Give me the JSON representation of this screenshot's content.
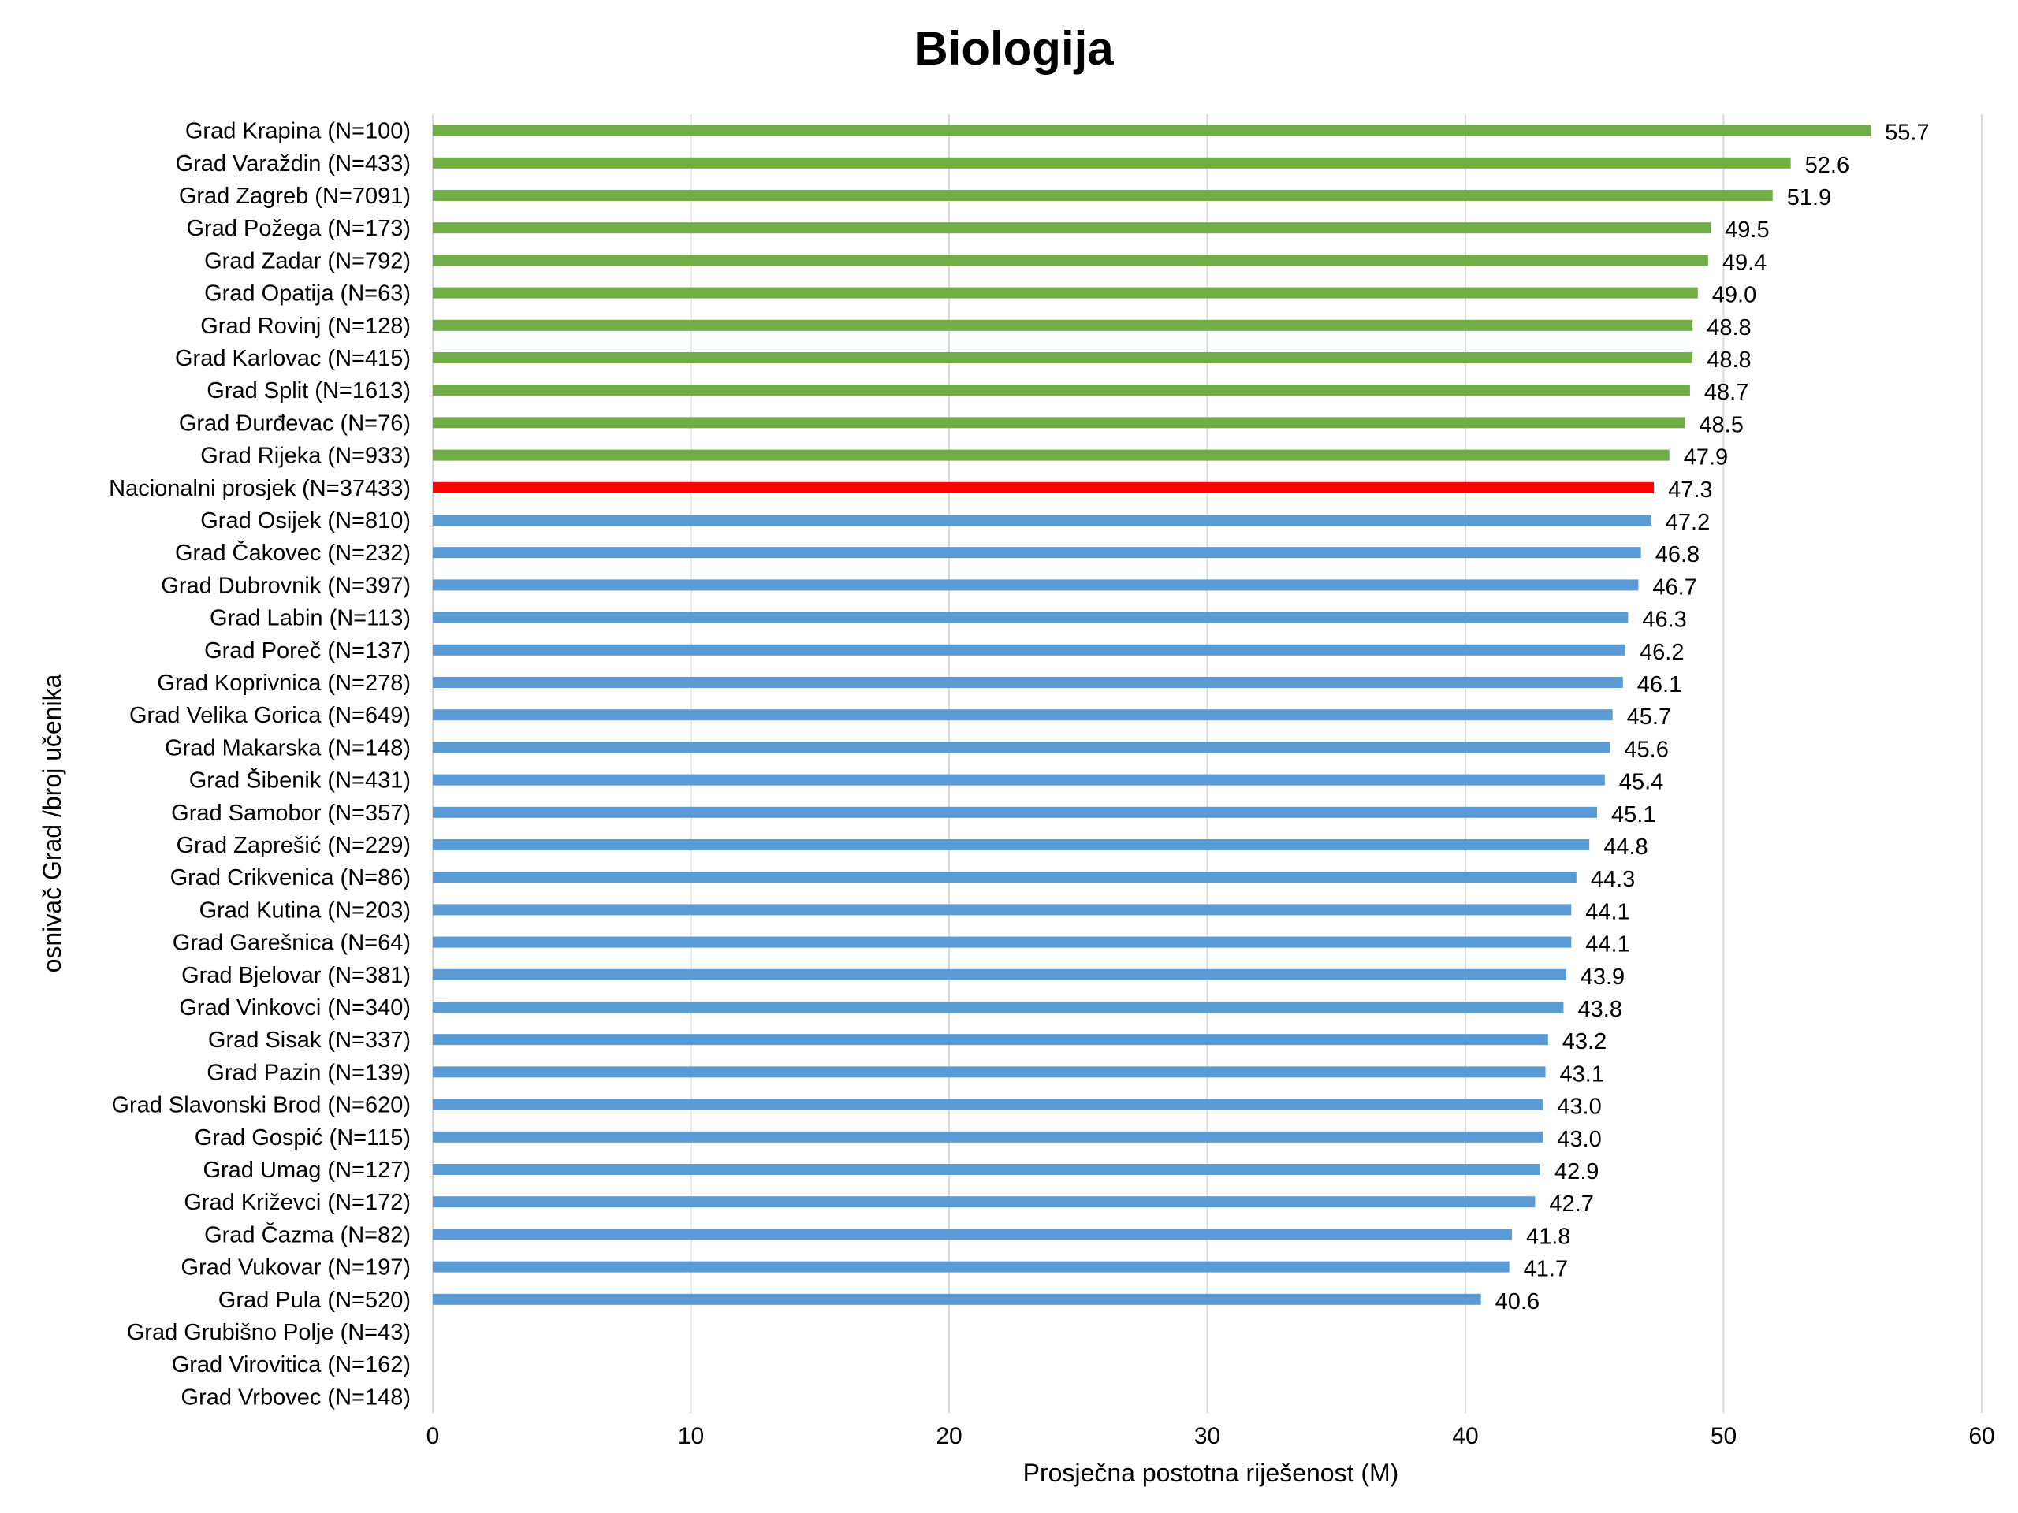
{
  "chart_data": {
    "type": "bar",
    "orientation": "horizontal",
    "title": "Biologija",
    "xlabel": "Prosječna postotna riješenost (M)",
    "ylabel": "osnivač Grad /broj učenika",
    "xlim": [
      0,
      60
    ],
    "xticks": [
      0,
      10,
      20,
      30,
      40,
      50,
      60
    ],
    "grid": "vertical",
    "colors": {
      "above": "#70ad47",
      "national": "#ff0000",
      "below": "#5b9bd5",
      "grid": "#d9d9d9"
    },
    "categories": [
      "Grad Krapina (N=100)",
      "Grad Varaždin (N=433)",
      "Grad Zagreb (N=7091)",
      "Grad Požega (N=173)",
      "Grad Zadar (N=792)",
      "Grad Opatija (N=63)",
      "Grad Rovinj (N=128)",
      "Grad Karlovac (N=415)",
      "Grad Split (N=1613)",
      "Grad Đurđevac (N=76)",
      "Grad Rijeka (N=933)",
      "Nacionalni prosjek (N=37433)",
      "Grad Osijek (N=810)",
      "Grad Čakovec (N=232)",
      "Grad Dubrovnik (N=397)",
      "Grad Labin (N=113)",
      "Grad Poreč (N=137)",
      "Grad Koprivnica (N=278)",
      "Grad Velika Gorica (N=649)",
      "Grad Makarska (N=148)",
      "Grad Šibenik (N=431)",
      "Grad Samobor (N=357)",
      "Grad Zaprešić (N=229)",
      "Grad Crikvenica (N=86)",
      "Grad Kutina (N=203)",
      "Grad Garešnica (N=64)",
      "Grad Bjelovar (N=381)",
      "Grad Vinkovci (N=340)",
      "Grad Sisak (N=337)",
      "Grad Pazin (N=139)",
      "Grad Slavonski Brod (N=620)",
      "Grad Gospić (N=115)",
      "Grad Umag (N=127)",
      "Grad Križevci (N=172)",
      "Grad Čazma (N=82)",
      "Grad Vukovar (N=197)",
      "Grad Pula (N=520)",
      "Grad Grubišno Polje (N=43)",
      "Grad Virovitica (N=162)",
      "Grad Vrbovec (N=148)"
    ],
    "values": [
      55.7,
      52.6,
      51.9,
      49.5,
      49.4,
      49.0,
      48.8,
      48.8,
      48.7,
      48.5,
      47.9,
      47.3,
      47.2,
      46.8,
      46.7,
      46.3,
      46.2,
      46.1,
      45.7,
      45.6,
      45.4,
      45.1,
      44.8,
      44.3,
      44.1,
      44.1,
      43.9,
      43.8,
      43.2,
      43.1,
      43.0,
      43.0,
      42.9,
      42.7,
      41.8,
      41.7,
      40.6,
      null,
      null,
      null
    ],
    "data_labels": [
      "55.7",
      "52.6",
      "51.9",
      "49.5",
      "49.4",
      "49.0",
      "48.8",
      "48.8",
      "48.7",
      "48.5",
      "47.9",
      "47.3",
      "47.2",
      "46.8",
      "46.7",
      "46.3",
      "46.2",
      "46.1",
      "45.7",
      "45.6",
      "45.4",
      "45.1",
      "44.8",
      "44.3",
      "44.1",
      "44.1",
      "43.9",
      "43.8",
      "43.2",
      "43.1",
      "43.0",
      "43.0",
      "42.9",
      "42.7",
      "41.8",
      "41.7",
      "40.6",
      "",
      "",
      ""
    ],
    "national_index": 11
  }
}
